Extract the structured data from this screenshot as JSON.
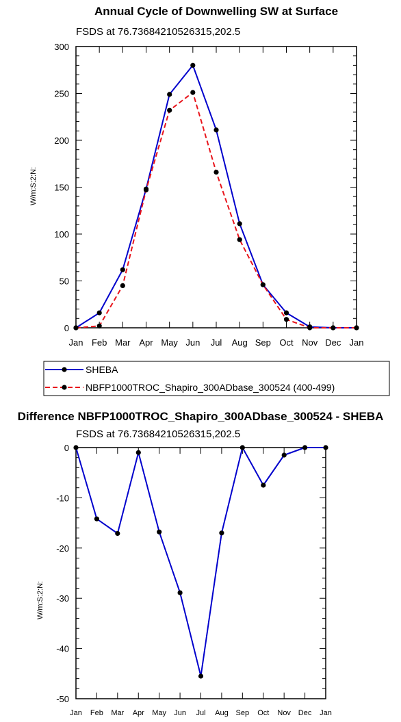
{
  "chart_data": [
    {
      "type": "line",
      "title": "Annual Cycle of Downwelling SW at Surface",
      "subtitle": "FSDS at 76.73684210526315,202.5",
      "ylabel": "W/m:S:2:N:",
      "xlabel": "",
      "categories": [
        "Jan",
        "Feb",
        "Mar",
        "Apr",
        "May",
        "Jun",
        "Jul",
        "Aug",
        "Sep",
        "Oct",
        "Nov",
        "Dec",
        "Jan"
      ],
      "yticks": [
        0,
        50,
        100,
        150,
        200,
        250,
        300
      ],
      "ylim": [
        0,
        300
      ],
      "grid": false,
      "legend_position": "below plot",
      "series": [
        {
          "name": "SHEBA",
          "color": "#0000cc",
          "dash": "solid",
          "values": [
            0,
            16,
            62,
            148,
            249,
            280,
            211,
            111,
            46,
            16,
            1,
            0,
            0
          ]
        },
        {
          "name": "NBFP1000TROC_Shapiro_300ADbase_300524 (400-499)",
          "color": "#e8141b",
          "dash": "dashed",
          "values": [
            0,
            2,
            45,
            147,
            232,
            251,
            166,
            94,
            46,
            9,
            0,
            0,
            0
          ]
        }
      ]
    },
    {
      "type": "line",
      "title": "Difference NBFP1000TROC_Shapiro_300ADbase_300524 - SHEBA",
      "subtitle": "FSDS at 76.73684210526315,202.5",
      "ylabel": "W/m:S:2:N:",
      "xlabel": "",
      "categories": [
        "Jan",
        "Feb",
        "Mar",
        "Apr",
        "May",
        "Jun",
        "Jul",
        "Aug",
        "Sep",
        "Oct",
        "Nov",
        "Dec",
        "Jan"
      ],
      "yticks": [
        0,
        -10,
        -20,
        -30,
        -40,
        -50
      ],
      "ylim": [
        -50,
        0
      ],
      "grid": false,
      "series": [
        {
          "color": "#0000cc",
          "dash": "solid",
          "values": [
            0,
            -14.2,
            -17.1,
            -1.0,
            -16.8,
            -28.9,
            -45.5,
            -17.0,
            0,
            -7.5,
            -1.5,
            0,
            0
          ]
        }
      ]
    }
  ]
}
